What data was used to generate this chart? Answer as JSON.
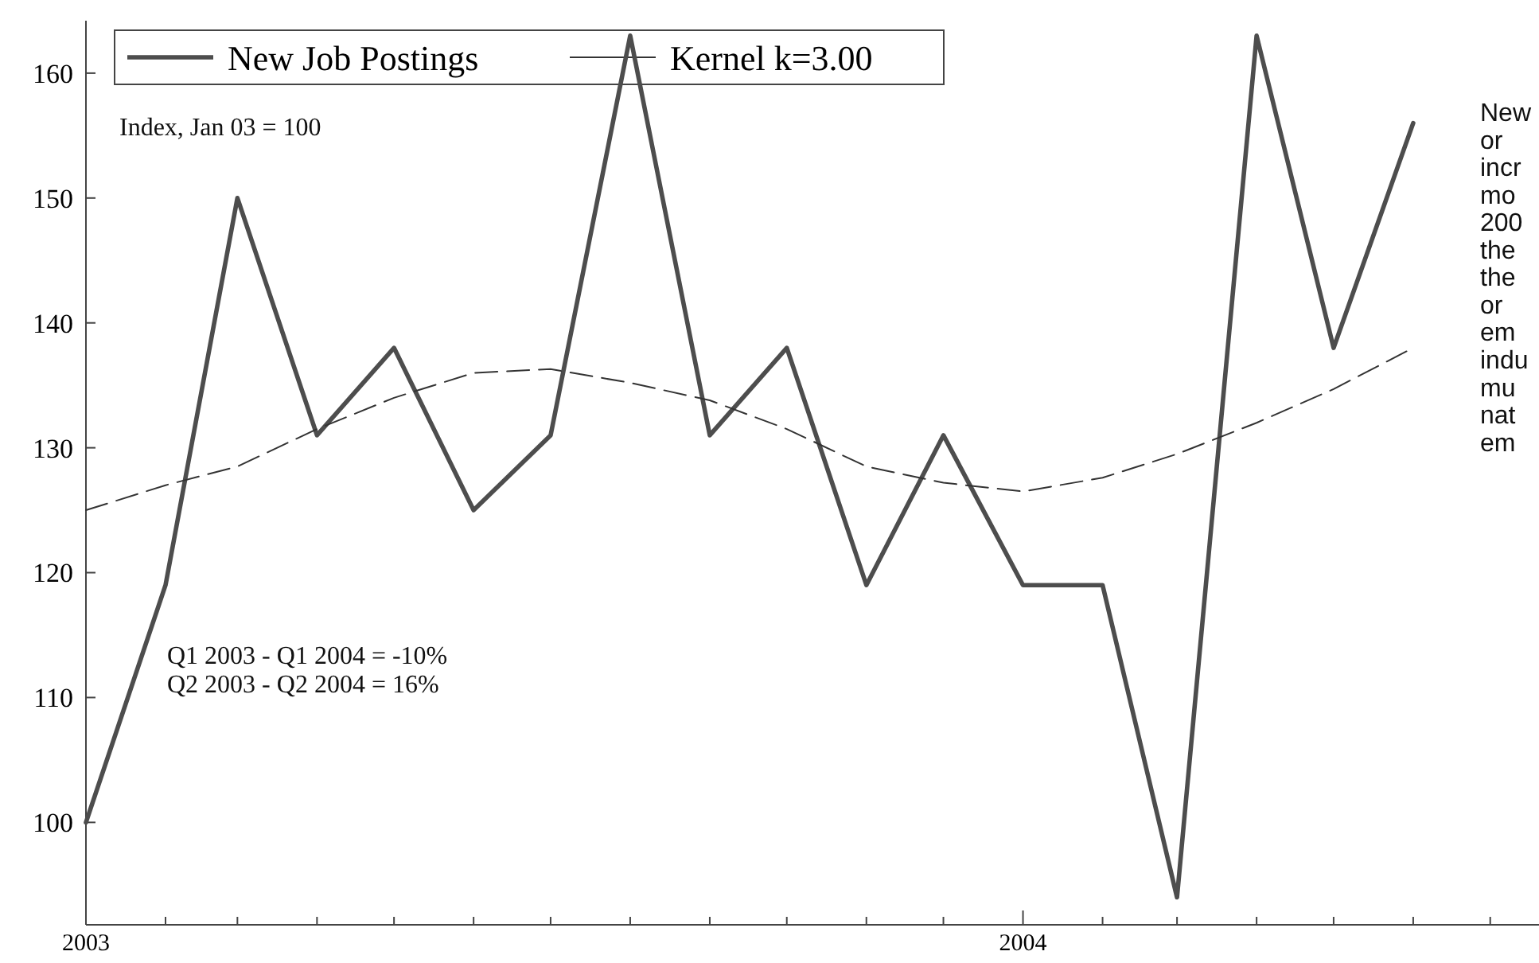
{
  "chart_data": {
    "type": "line",
    "x": [
      "2003-01",
      "2003-02",
      "2003-03",
      "2003-04",
      "2003-05",
      "2003-06",
      "2003-07",
      "2003-08",
      "2003-09",
      "2003-10",
      "2003-11",
      "2003-12",
      "2004-01",
      "2004-02",
      "2004-03",
      "2004-04",
      "2004-05",
      "2004-06"
    ],
    "series": [
      {
        "name": "New Job Postings",
        "color": "#4d4d4d",
        "values": [
          100,
          119,
          150,
          131,
          138,
          125,
          131,
          163,
          131,
          138,
          119,
          131,
          119,
          119,
          94,
          163,
          138,
          156
        ]
      },
      {
        "name": "Kernel k=3.00",
        "color": "#333333",
        "line_style": "dashed",
        "values": [
          125,
          127,
          128.5,
          131.5,
          134,
          136,
          136.3,
          135.2,
          133.8,
          131.5,
          128.5,
          127.2,
          126.5,
          127.6,
          129.5,
          132,
          134.7,
          138
        ]
      }
    ],
    "xlim": [
      "2003-01-01",
      "2004-07-20"
    ],
    "xticks": [
      {
        "value": "2003-01",
        "label": "2003"
      },
      {
        "value": "2003-02",
        "label": null
      },
      {
        "value": "2003-03",
        "label": null
      },
      {
        "value": "2003-04",
        "label": null
      },
      {
        "value": "2003-05",
        "label": null
      },
      {
        "value": "2003-06",
        "label": null
      },
      {
        "value": "2003-07",
        "label": null
      },
      {
        "value": "2003-08",
        "label": null
      },
      {
        "value": "2003-09",
        "label": null
      },
      {
        "value": "2003-10",
        "label": null
      },
      {
        "value": "2003-11",
        "label": null
      },
      {
        "value": "2003-12",
        "label": null
      },
      {
        "value": "2004-01",
        "label": "2004"
      },
      {
        "value": "2004-02",
        "label": null
      },
      {
        "value": "2004-03",
        "label": null
      },
      {
        "value": "2004-04",
        "label": null
      },
      {
        "value": "2004-05",
        "label": null
      },
      {
        "value": "2004-06",
        "label": null
      },
      {
        "value": "2004-07",
        "label": null
      }
    ],
    "ylim": [
      91.8,
      164.2
    ],
    "yticks": [
      100,
      110,
      120,
      130,
      140,
      150,
      160
    ],
    "annotations": [
      "Index, Jan 03 = 100",
      "Q1 2003 - Q1 2004 = -10%",
      "Q2 2003 - Q2 2004 =  16%",
      "New\nor\nincr\nmo\n200\nthe\nthe\nor\nem\nindu\nmu\nnat\nem"
    ],
    "legend": "top left",
    "grid": false,
    "marker": "none",
    "line_style": "solid"
  }
}
